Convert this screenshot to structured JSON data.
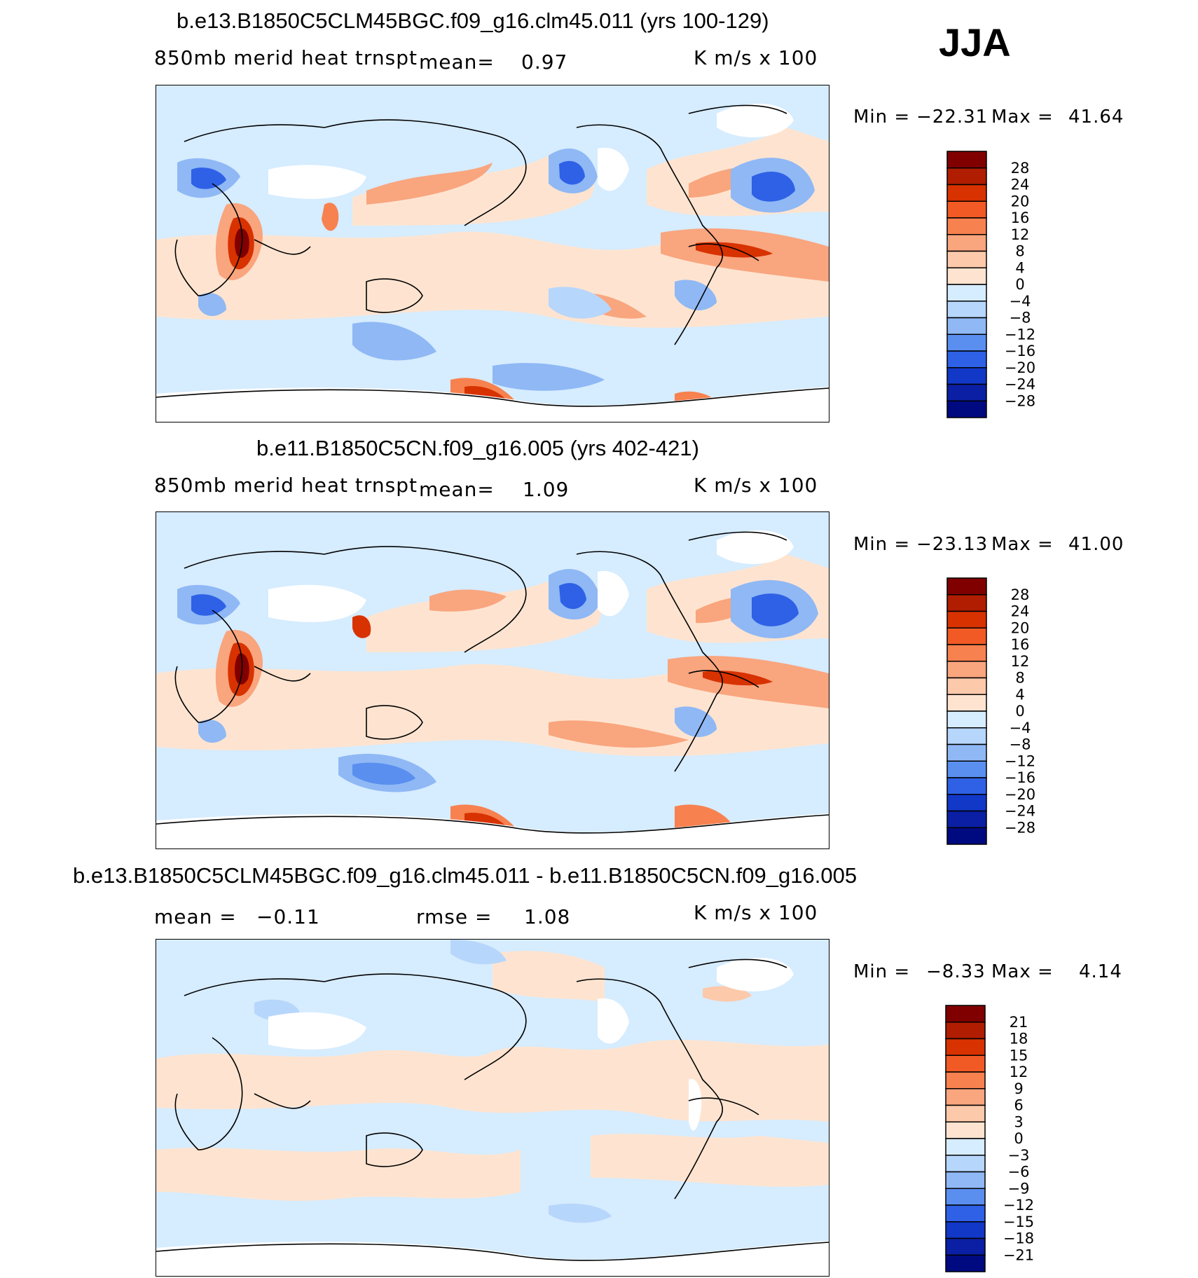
{
  "season": "JJA",
  "panels": [
    {
      "title": "b.e13.B1850C5CLM45BGC.f09_g16.clm45.011 (yrs 100-129)",
      "left_label": "850mb  merid  heat  trnspt",
      "mean_label": "mean=",
      "mean_value": "0.97",
      "units": "K  m/s  x  100",
      "min_label": "Min  =",
      "min_value": "−22.31",
      "max_label": "Max  =",
      "max_value": "41.64",
      "colorbar_ticks": [
        "28",
        "24",
        "20",
        "16",
        "12",
        "8",
        "4",
        "0",
        "−4",
        "−8",
        "−12",
        "−16",
        "−20",
        "−24",
        "−28"
      ]
    },
    {
      "title": "b.e11.B1850C5CN.f09_g16.005 (yrs 402-421)",
      "left_label": "850mb  merid  heat  trnspt",
      "mean_label": "mean=",
      "mean_value": "1.09",
      "units": "K  m/s  x  100",
      "min_label": "Min  =",
      "min_value": "−23.13",
      "max_label": "Max  =",
      "max_value": "41.00",
      "colorbar_ticks": [
        "28",
        "24",
        "20",
        "16",
        "12",
        "8",
        "4",
        "0",
        "−4",
        "−8",
        "−12",
        "−16",
        "−20",
        "−24",
        "−28"
      ]
    },
    {
      "title": "b.e13.B1850C5CLM45BGC.f09_g16.clm45.011 - b.e11.B1850C5CN.f09_g16.005",
      "mean_label": "mean  =",
      "mean_value": "−0.11",
      "rmse_label": "rmse  =",
      "rmse_value": "1.08",
      "units": "K  m/s  x  100",
      "min_label": "Min  =",
      "min_value": "−8.33",
      "max_label": "Max  =",
      "max_value": "4.14",
      "colorbar_ticks": [
        "21",
        "18",
        "15",
        "12",
        "9",
        "6",
        "3",
        "0",
        "−3",
        "−6",
        "−9",
        "−12",
        "−15",
        "−18",
        "−21"
      ]
    }
  ],
  "colorbar_colors": [
    "#800000",
    "#b01d00",
    "#d83200",
    "#f15a24",
    "#f7814f",
    "#f9a57e",
    "#fcc9aa",
    "#fee4d0",
    "#d6ecff",
    "#b7d6fb",
    "#8fb8f5",
    "#5a8ff0",
    "#2e61e6",
    "#1238c8",
    "#0a1fa3",
    "#000a80"
  ],
  "colors": {
    "ocean_base_light_blue": "#d6ecff",
    "warm_light": "#fee4d0",
    "warm_mid": "#f9a57e",
    "warm_strong": "#d83200",
    "cool_mid": "#8fb8f5",
    "cool_strong": "#2e61e6",
    "missing_land": "#ffffff"
  }
}
